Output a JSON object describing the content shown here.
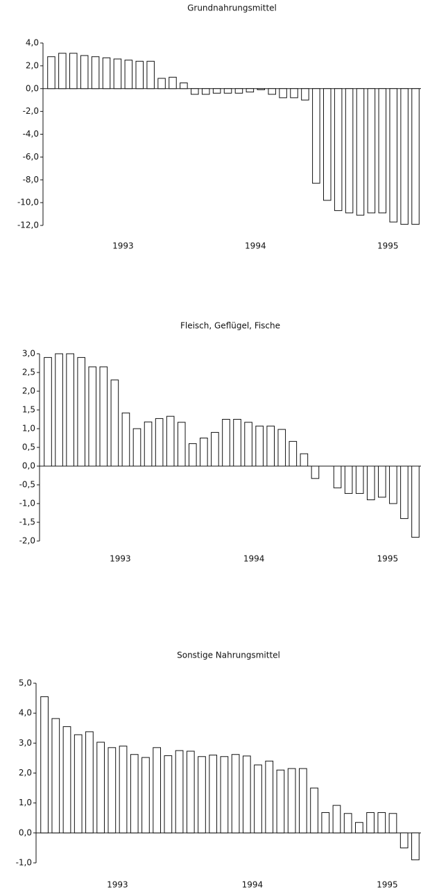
{
  "chart_data": [
    {
      "type": "bar",
      "title": "Grundnahrungsmittel",
      "color": "#ffffff",
      "categories": [
        null,
        null,
        null,
        null,
        null,
        null,
        "1993",
        null,
        null,
        null,
        null,
        null,
        null,
        null,
        null,
        null,
        null,
        null,
        "1994",
        null,
        null,
        null,
        null,
        null,
        null,
        null,
        null,
        null,
        null,
        null,
        "1995",
        null,
        null,
        null
      ],
      "values": [
        2.8,
        3.1,
        3.1,
        2.9,
        2.8,
        2.7,
        2.6,
        2.5,
        2.4,
        2.4,
        0.9,
        1.0,
        0.5,
        -0.5,
        -0.5,
        -0.4,
        -0.4,
        -0.4,
        -0.3,
        -0.1,
        -0.5,
        -0.8,
        -0.8,
        -1.0,
        -8.3,
        -9.8,
        -10.7,
        -10.9,
        -11.1,
        -10.9,
        -10.9,
        -11.7,
        -11.9,
        -11.9
      ],
      "ylim": [
        -12,
        4
      ],
      "yticks": [
        {
          "value": -12,
          "label": "-12,0"
        },
        {
          "value": -10,
          "label": "-10,0"
        },
        {
          "value": -8,
          "label": "-8,0"
        },
        {
          "value": -6,
          "label": "-6,0"
        },
        {
          "value": -4,
          "label": "-4,0"
        },
        {
          "value": -2,
          "label": "-2,0"
        },
        {
          "value": 0,
          "label": "0,0"
        },
        {
          "value": 2,
          "label": "2,0"
        },
        {
          "value": 4,
          "label": "4,0"
        }
      ]
    },
    {
      "type": "bar",
      "title": "Fleisch, Geflügel, Fische",
      "color": "#ffffff",
      "categories": [
        null,
        null,
        null,
        null,
        null,
        null,
        "1993",
        null,
        null,
        null,
        null,
        null,
        null,
        null,
        null,
        null,
        null,
        null,
        "1994",
        null,
        null,
        null,
        null,
        null,
        null,
        null,
        null,
        null,
        null,
        null,
        "1995",
        null,
        null,
        null
      ],
      "values": [
        2.9,
        3.0,
        3.0,
        2.9,
        2.65,
        2.65,
        2.3,
        1.42,
        1.0,
        1.18,
        1.27,
        1.33,
        1.17,
        0.6,
        0.75,
        0.9,
        1.25,
        1.25,
        1.17,
        1.07,
        1.07,
        0.98,
        0.66,
        0.33,
        -0.33,
        0,
        -0.58,
        -0.73,
        -0.73,
        -0.9,
        -0.83,
        -1.0,
        -1.4,
        -1.9
      ],
      "ylim": [
        -2,
        3
      ],
      "yticks": [
        {
          "value": -2,
          "label": "-2,0"
        },
        {
          "value": -1.5,
          "label": "-1,5"
        },
        {
          "value": -1,
          "label": "-1,0"
        },
        {
          "value": -0.5,
          "label": "-0,5"
        },
        {
          "value": 0,
          "label": "0,0"
        },
        {
          "value": 0.5,
          "label": "0,5"
        },
        {
          "value": 1,
          "label": "1,0"
        },
        {
          "value": 1.5,
          "label": "1,5"
        },
        {
          "value": 2,
          "label": "2,0"
        },
        {
          "value": 2.5,
          "label": "2,5"
        },
        {
          "value": 3,
          "label": "3,0"
        }
      ]
    },
    {
      "type": "bar",
      "title": "Sonstige Nahrungsmittel",
      "color": "#ffffff",
      "categories": [
        null,
        null,
        null,
        null,
        null,
        null,
        "1993",
        null,
        null,
        null,
        null,
        null,
        null,
        null,
        null,
        null,
        null,
        null,
        "1994",
        null,
        null,
        null,
        null,
        null,
        null,
        null,
        null,
        null,
        null,
        null,
        "1995",
        null,
        null,
        null
      ],
      "values": [
        4.55,
        3.82,
        3.55,
        3.28,
        3.38,
        3.03,
        2.85,
        2.9,
        2.62,
        2.52,
        2.85,
        2.58,
        2.75,
        2.73,
        2.55,
        2.6,
        2.55,
        2.62,
        2.57,
        2.27,
        2.4,
        2.1,
        2.15,
        2.15,
        1.5,
        0.68,
        0.92,
        0.65,
        0.35,
        0.68,
        0.68,
        0.65,
        -0.5,
        -0.9
      ],
      "ylim": [
        -1,
        5
      ],
      "yticks": [
        {
          "value": -1,
          "label": "-1,0"
        },
        {
          "value": 0,
          "label": "0,0"
        },
        {
          "value": 1,
          "label": "1,0"
        },
        {
          "value": 2,
          "label": "2,0"
        },
        {
          "value": 3,
          "label": "3,0"
        },
        {
          "value": 4,
          "label": "4,0"
        },
        {
          "value": 5,
          "label": "5,0"
        }
      ]
    }
  ]
}
